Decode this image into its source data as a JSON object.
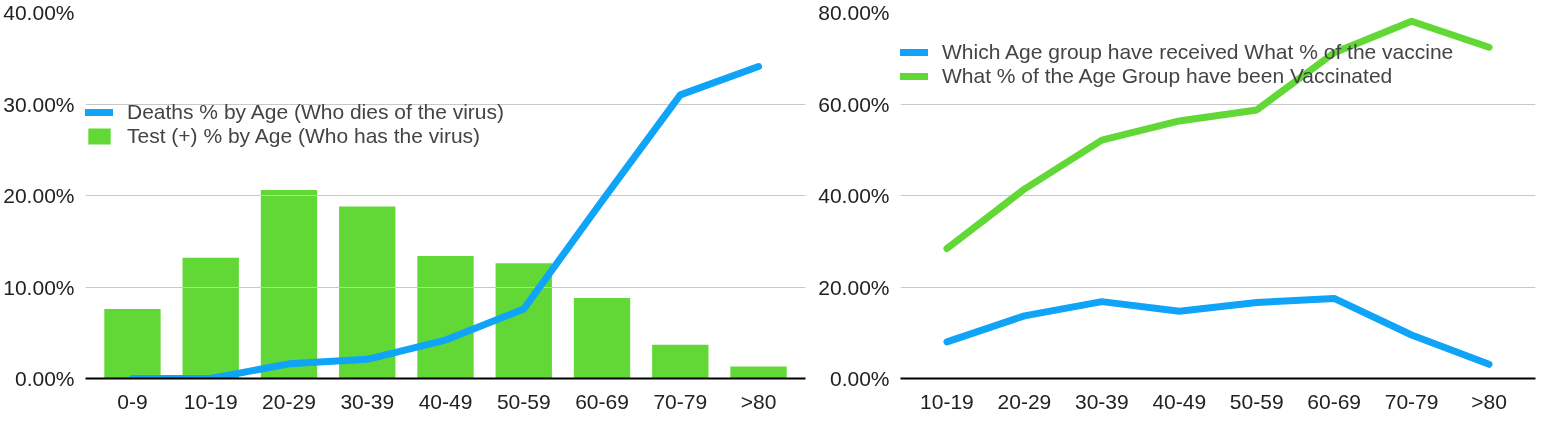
{
  "chart_data": [
    {
      "type": "bar",
      "categories": [
        "0-9",
        "10-19",
        "20-29",
        "30-39",
        "40-49",
        "50-59",
        "60-69",
        "70-79",
        ">80"
      ],
      "series": [
        {
          "name": "Deaths % by Age (Who dies of the virus)",
          "type": "line",
          "color": "#0fa4f8",
          "values": [
            0,
            0,
            1.6,
            2.1,
            4.2,
            7.6,
            19.4,
            31.0,
            34.1
          ]
        },
        {
          "name": "Test (+) % by Age (Who has the virus)",
          "type": "bar",
          "color": "#61d836",
          "values": [
            7.6,
            13.2,
            20.6,
            18.8,
            13.4,
            12.6,
            8.8,
            3.7,
            1.3
          ]
        }
      ],
      "ylim": [
        0,
        40
      ],
      "yticks": [
        {
          "value": 0,
          "label": "0.00%"
        },
        {
          "value": 10,
          "label": "10.00%"
        },
        {
          "value": 20,
          "label": "20.00%"
        },
        {
          "value": 30,
          "label": "30.00%"
        },
        {
          "value": 40,
          "label": "40.00%"
        }
      ],
      "grid": "y",
      "legend": "top left"
    },
    {
      "type": "line",
      "categories": [
        "10-19",
        "20-29",
        "30-39",
        "40-49",
        "50-59",
        "60-69",
        "70-79",
        ">80"
      ],
      "series": [
        {
          "name": "Which Age group have received What % of the vaccine",
          "color": "#0fa4f8",
          "values": [
            8.0,
            13.7,
            16.8,
            14.7,
            16.6,
            17.5,
            9.5,
            3.1
          ]
        },
        {
          "name": "What % of the Age Group have been Vaccinated",
          "color": "#61d836",
          "values": [
            28.4,
            41.4,
            52.1,
            56.3,
            58.7,
            71.2,
            78.1,
            72.4
          ]
        }
      ],
      "ylim": [
        0,
        80
      ],
      "yticks": [
        {
          "value": 0,
          "label": "0.00%"
        },
        {
          "value": 20,
          "label": "20.00%"
        },
        {
          "value": 40,
          "label": "40.00%"
        },
        {
          "value": 60,
          "label": "60.00%"
        },
        {
          "value": 80,
          "label": "80.00%"
        }
      ],
      "grid": "y",
      "legend": "top"
    }
  ]
}
